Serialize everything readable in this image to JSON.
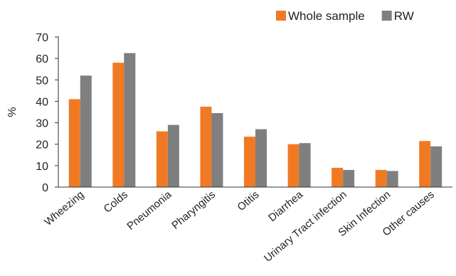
{
  "chart_data": {
    "type": "bar",
    "title": "",
    "xlabel": "",
    "ylabel": "%",
    "ylim": [
      0,
      70
    ],
    "yticks": [
      0,
      10,
      20,
      30,
      40,
      50,
      60,
      70
    ],
    "grid": false,
    "legend_position": "top-right",
    "categories": [
      "Wheezing",
      "Colds",
      "Pneumonia",
      "Pharyngitis",
      "Otitis",
      "Diarrhea",
      "Urinary Tract infection",
      "Skin Infection",
      "Other causes"
    ],
    "series": [
      {
        "name": "Whole sample",
        "color": "#F07A24",
        "values": [
          41,
          58,
          26,
          37.5,
          23.5,
          20,
          9,
          8,
          21.5
        ]
      },
      {
        "name": "RW",
        "color": "#7F7F7F",
        "values": [
          52,
          62.5,
          29,
          34.5,
          27,
          20.5,
          8,
          7.5,
          19
        ]
      }
    ]
  }
}
